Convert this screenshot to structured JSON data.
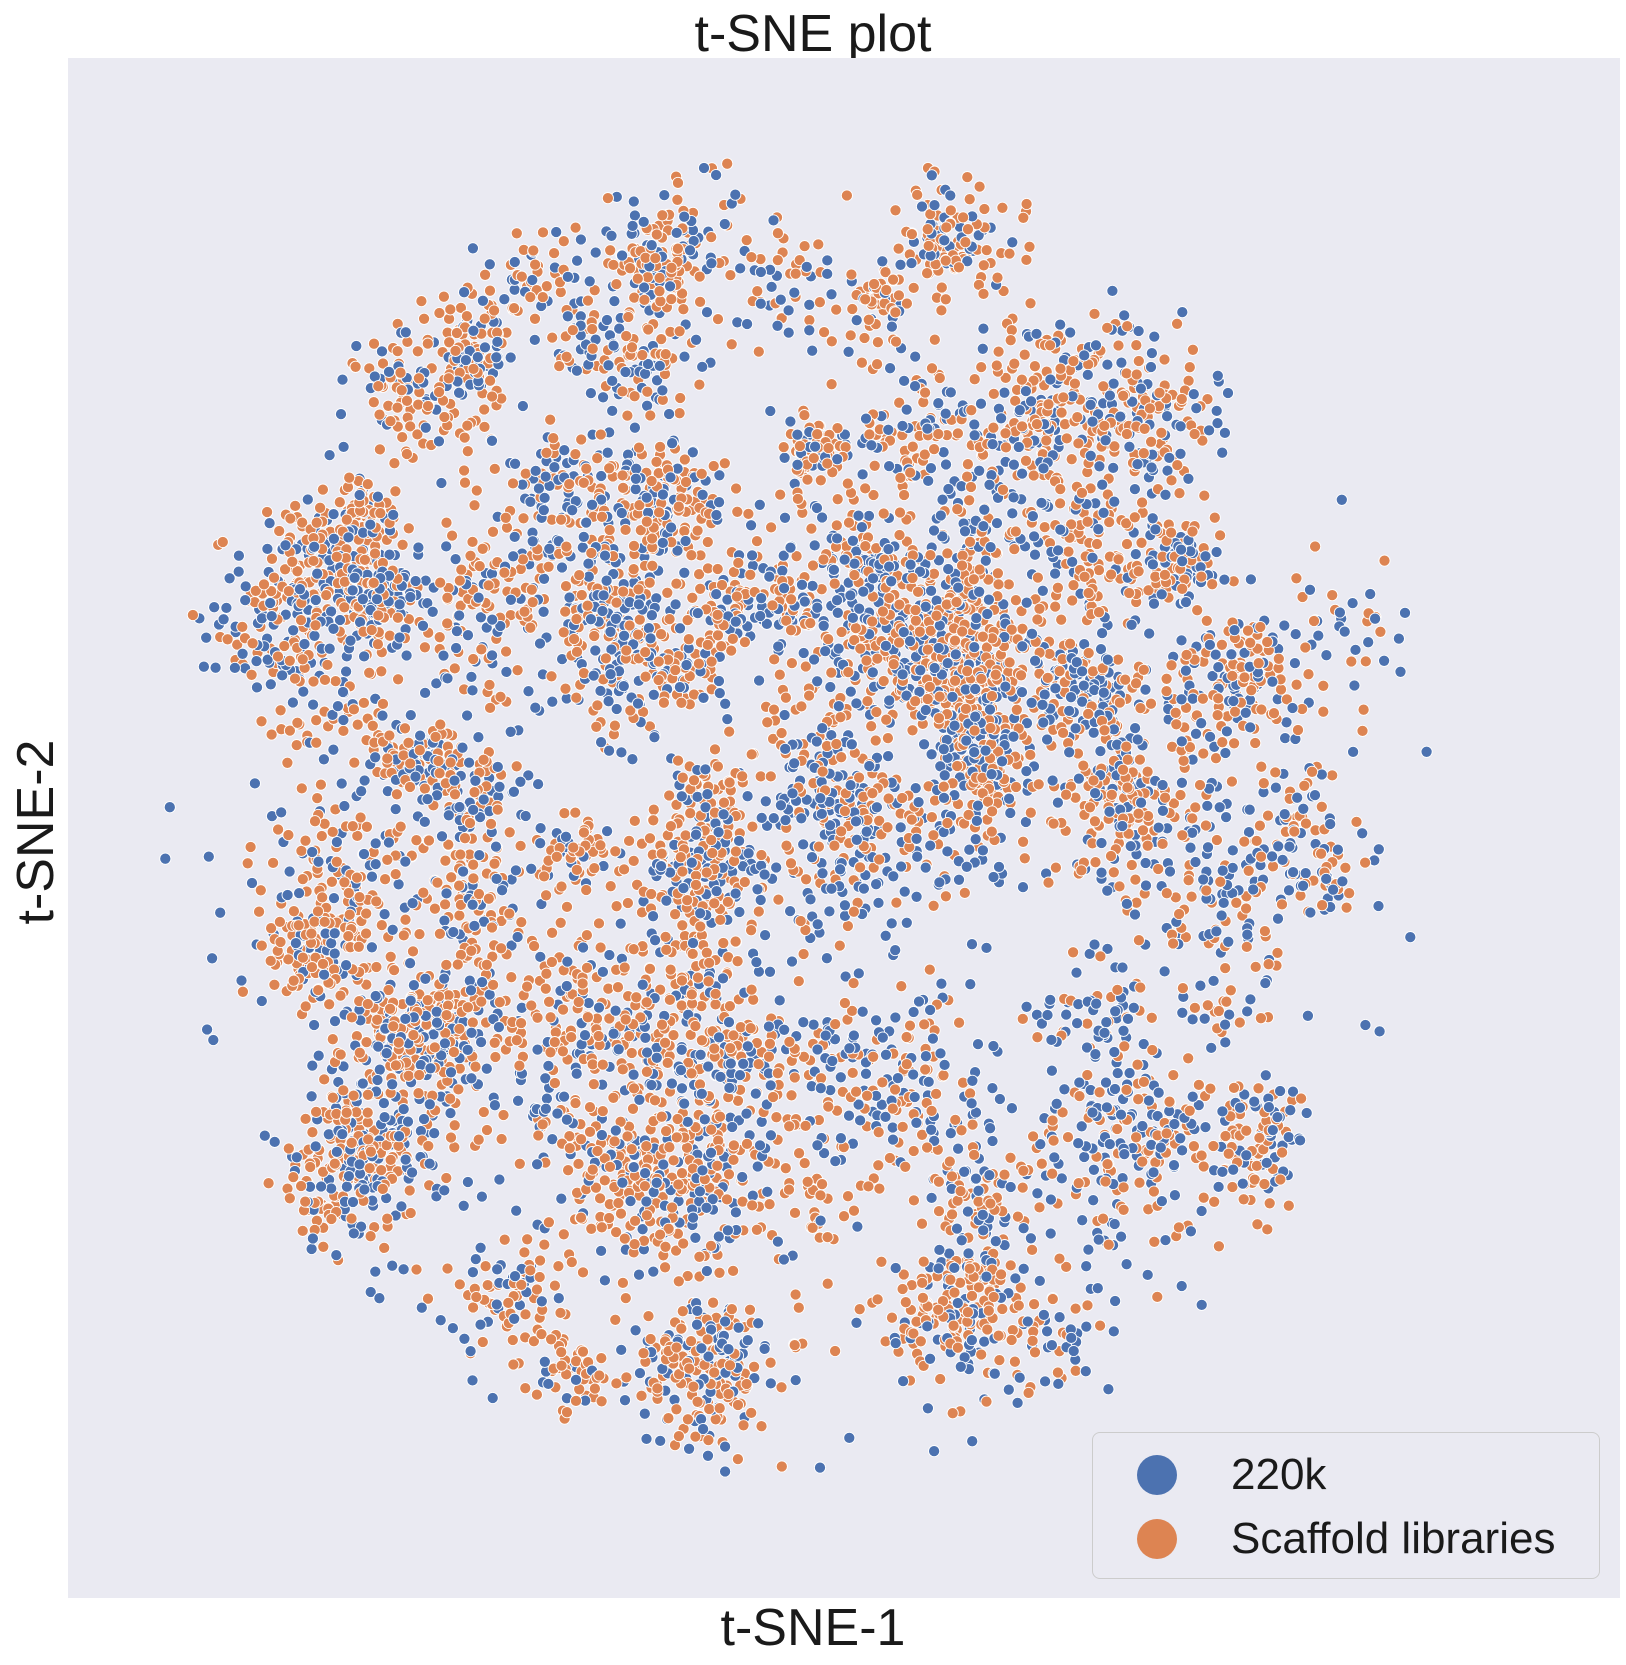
{
  "chart_data": {
    "type": "scatter",
    "title": "t-SNE plot",
    "xlabel": "t-SNE-1",
    "ylabel": "t-SNE-2",
    "grid": false,
    "ticks_visible": false,
    "legend_position": "lower-right",
    "series": [
      {
        "name": "220k",
        "color": "#4c72b0"
      },
      {
        "name": "Scaffold libraries",
        "color": "#dd8452"
      }
    ]
  }
}
